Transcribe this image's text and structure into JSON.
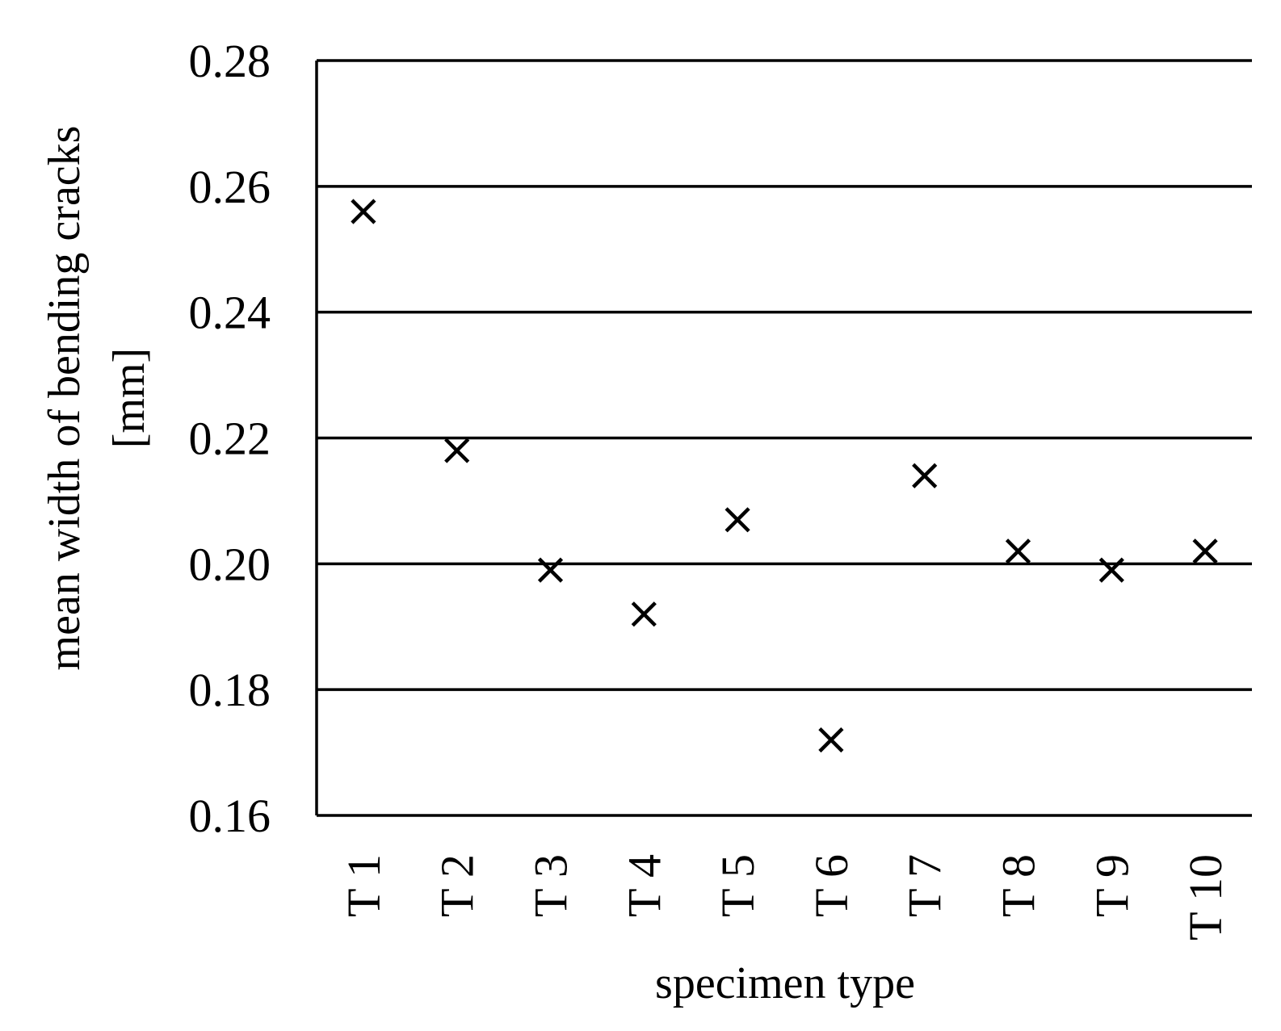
{
  "chart_data": {
    "type": "scatter",
    "title": "",
    "xlabel": "specimen type",
    "ylabel_lines": [
      "mean width of bending cracks",
      "[mm]"
    ],
    "categories": [
      "T 1",
      "T 2",
      "T 3",
      "T 4",
      "T 5",
      "T 6",
      "T 7",
      "T 8",
      "T 9",
      "T 10"
    ],
    "values": [
      0.256,
      0.218,
      0.199,
      0.192,
      0.207,
      0.172,
      0.214,
      0.202,
      0.199,
      0.202
    ],
    "ylim": [
      0.16,
      0.28
    ],
    "yticks": [
      "0.16",
      "0.18",
      "0.20",
      "0.22",
      "0.24",
      "0.26",
      "0.28"
    ],
    "grid": "horizontal",
    "marker": "x",
    "color": "#000000"
  }
}
